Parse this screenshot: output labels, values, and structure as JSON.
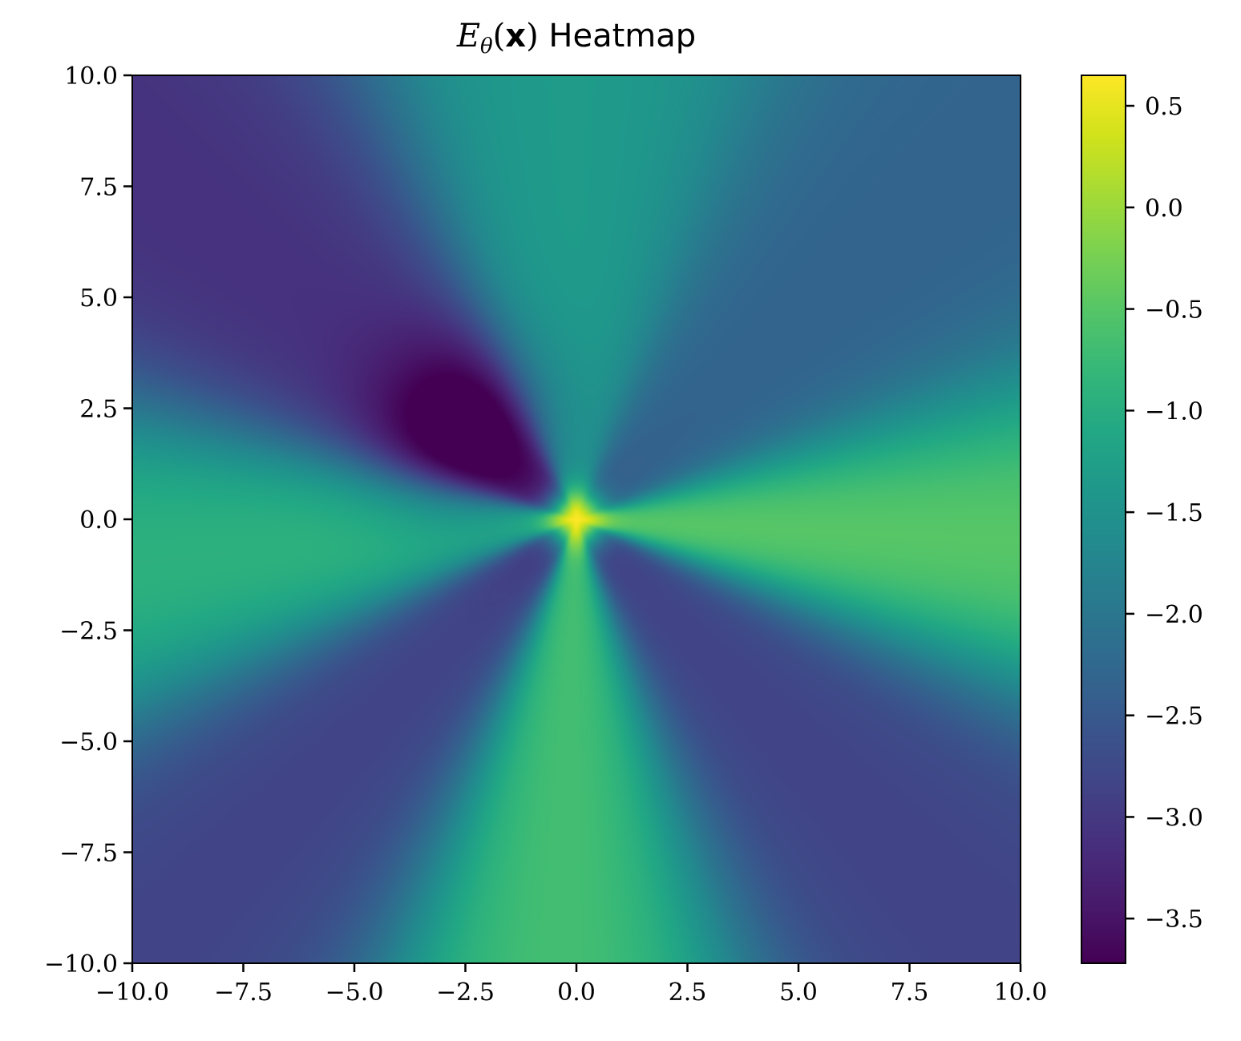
{
  "chart_data": {
    "type": "heatmap",
    "title": {
      "math_main": "E",
      "math_sub": "θ",
      "math_open": "(",
      "math_bold": "x",
      "math_close": ")",
      "text": "Heatmap"
    },
    "xlabel": "",
    "ylabel": "",
    "xlim": [
      -10.0,
      10.0
    ],
    "ylim": [
      -10.0,
      10.0
    ],
    "x_ticks": [
      -10.0,
      -7.5,
      -5.0,
      -2.5,
      0.0,
      2.5,
      5.0,
      7.5,
      10.0
    ],
    "y_ticks": [
      -10.0,
      -7.5,
      -5.0,
      -2.5,
      0.0,
      2.5,
      5.0,
      7.5,
      10.0
    ],
    "x_tick_labels": [
      "−10.0",
      "−7.5",
      "−5.0",
      "−2.5",
      "0.0",
      "2.5",
      "5.0",
      "7.5",
      "10.0"
    ],
    "y_tick_labels": [
      "−10.0",
      "−7.5",
      "−5.0",
      "−2.5",
      "0.0",
      "2.5",
      "5.0",
      "7.5",
      "10.0"
    ],
    "colormap": "viridis",
    "colorbar": {
      "range": [
        -3.72,
        0.65
      ],
      "ticks": [
        0.5,
        0.0,
        -0.5,
        -1.0,
        -1.5,
        -2.0,
        -2.5,
        -3.0,
        -3.5
      ],
      "tick_labels": [
        "0.5",
        "0.0",
        "−0.5",
        "−1.0",
        "−1.5",
        "−2.0",
        "−2.5",
        "−3.0",
        "−3.5"
      ]
    },
    "grid": false,
    "features": {
      "peak": {
        "x": 0.0,
        "y": 0.0,
        "value": 0.65
      },
      "minimum": {
        "x": -2.5,
        "y": 2.0,
        "value": -3.72
      },
      "ridges": [
        {
          "direction": "x = +10, y = 0",
          "value_at_edge": -0.1
        },
        {
          "direction": "x = 0, y = -10",
          "value_at_edge": -0.4
        },
        {
          "direction": "x = -10, y = -0.8",
          "value_at_edge": -0.7
        },
        {
          "direction": "x = 0, y = +10",
          "value_at_edge": -1.2
        }
      ],
      "valleys": [
        {
          "direction": "x = -10, y = +8",
          "value_at_edge": -3.2
        },
        {
          "direction": "x = -2.5, y = -2.5",
          "value_at_edge": -3.4
        },
        {
          "direction": "x = +9, y = -9",
          "value_at_edge": -3.0
        },
        {
          "direction": "x = +6, y = +6",
          "value_at_edge": -2.3
        }
      ]
    }
  }
}
